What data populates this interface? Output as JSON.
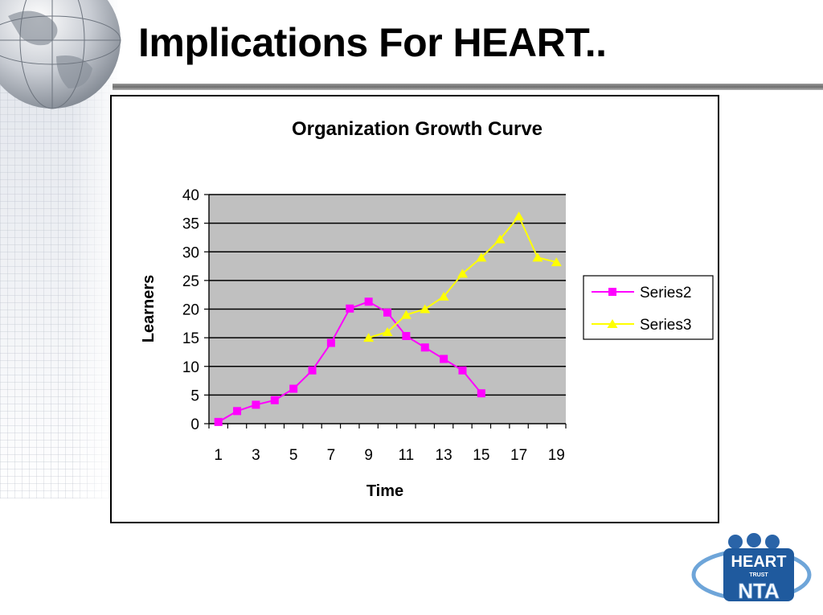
{
  "slide": {
    "title": "Implications For HEART.."
  },
  "chart_data": {
    "type": "line",
    "title": "Organization Growth Curve",
    "xlabel": "Time",
    "ylabel": "Learners",
    "x": [
      1,
      2,
      3,
      4,
      5,
      6,
      7,
      8,
      9,
      10,
      11,
      12,
      13,
      14,
      15,
      16,
      17,
      18,
      19
    ],
    "x_tick_labels": [
      "1",
      "3",
      "5",
      "7",
      "9",
      "11",
      "13",
      "15",
      "17",
      "19"
    ],
    "y_tick_labels": [
      "0",
      "5",
      "10",
      "15",
      "20",
      "25",
      "30",
      "35",
      "40"
    ],
    "ylim": [
      0,
      40
    ],
    "grid": "horizontal",
    "legend_position": "right",
    "plot_background": "#c0c0c0",
    "series": [
      {
        "name": "Series2",
        "color": "#ff00ff",
        "marker": "square",
        "points": [
          [
            1,
            0.3
          ],
          [
            2,
            2.2
          ],
          [
            3,
            3.3
          ],
          [
            4,
            4.1
          ],
          [
            5,
            6.1
          ],
          [
            6,
            9.3
          ],
          [
            7,
            14.1
          ],
          [
            8,
            20.1
          ],
          [
            9,
            21.3
          ],
          [
            10,
            19.4
          ],
          [
            11,
            15.3
          ],
          [
            12,
            13.3
          ],
          [
            13,
            11.3
          ],
          [
            14,
            9.3
          ],
          [
            15,
            5.3
          ]
        ]
      },
      {
        "name": "Series3",
        "color": "#ffff00",
        "marker": "triangle",
        "points": [
          [
            9,
            15
          ],
          [
            10,
            16
          ],
          [
            11,
            19
          ],
          [
            12,
            20
          ],
          [
            13,
            22.2
          ],
          [
            14,
            26.2
          ],
          [
            15,
            29
          ],
          [
            16,
            32.2
          ],
          [
            17,
            36.2
          ],
          [
            18,
            29
          ],
          [
            19,
            28.2
          ]
        ]
      }
    ]
  },
  "logo": {
    "name": "HEART",
    "subtext": "TRUST",
    "mark": "NTA"
  }
}
